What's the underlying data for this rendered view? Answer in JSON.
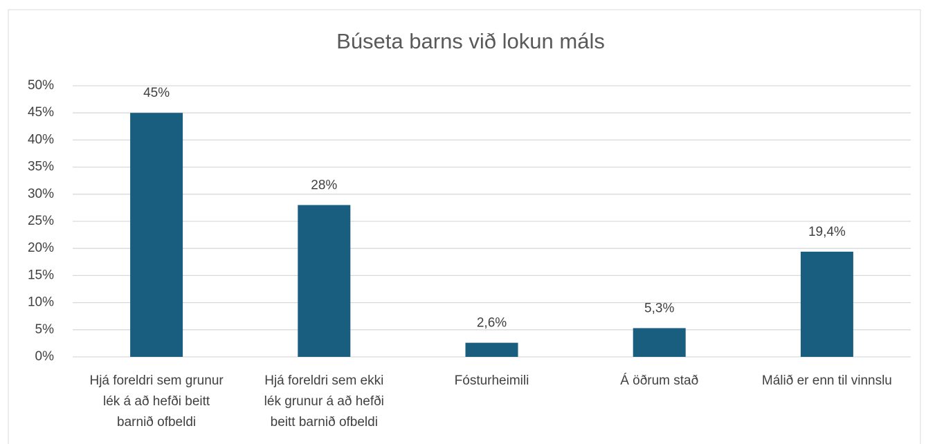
{
  "chart_data": {
    "type": "bar",
    "title": "Búseta barns við lokun máls",
    "categories": [
      "Hjá foreldri sem grunur lék á að hefði beitt barnið ofbeldi",
      "Hjá foreldri sem ekki lék grunur á að hefði beitt barnið ofbeldi",
      "Fósturheimili",
      "Á öðrum stað",
      "Málið er enn til vinnslu"
    ],
    "values": [
      45,
      28,
      2.6,
      5.3,
      19.4
    ],
    "value_labels": [
      "45%",
      "28%",
      "2,6%",
      "5,3%",
      "19,4%"
    ],
    "color": "#195e7e",
    "ylim": [
      0,
      50
    ],
    "yticks": [
      {
        "value": 0,
        "label": "0%"
      },
      {
        "value": 5,
        "label": "5%"
      },
      {
        "value": 10,
        "label": "10%"
      },
      {
        "value": 15,
        "label": "15%"
      },
      {
        "value": 20,
        "label": "20%"
      },
      {
        "value": 25,
        "label": "25%"
      },
      {
        "value": 30,
        "label": "30%"
      },
      {
        "value": 35,
        "label": "35%"
      },
      {
        "value": 40,
        "label": "40%"
      },
      {
        "value": 45,
        "label": "45%"
      },
      {
        "value": 50,
        "label": "50%"
      }
    ],
    "grid": true
  }
}
